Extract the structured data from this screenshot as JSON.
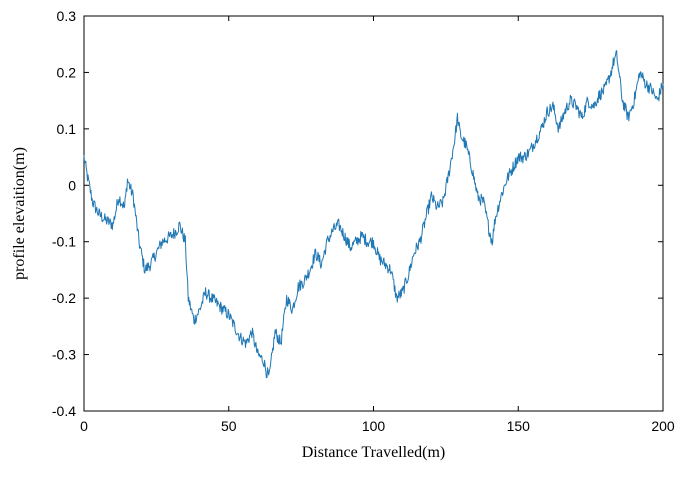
{
  "chart_data": {
    "type": "line",
    "title": "",
    "xlabel": "Distance Travelled(m)",
    "ylabel": "profile elevaition(m)",
    "xlim": [
      0,
      200
    ],
    "ylim": [
      -0.4,
      0.3
    ],
    "x_ticks": [
      0,
      50,
      100,
      150,
      200
    ],
    "x_tick_labels": [
      "0",
      "50",
      "100",
      "150",
      "200"
    ],
    "y_ticks": [
      -0.4,
      -0.3,
      -0.2,
      -0.1,
      0,
      0.1,
      0.2,
      0.3
    ],
    "y_tick_labels": [
      "-0.4",
      "-0.3",
      "-0.2",
      "-0.1",
      "0",
      "0.1",
      "0.2",
      "0.3"
    ],
    "grid": false,
    "legend": "none",
    "series": [
      {
        "color": "#1f77b4",
        "x": [
          0,
          1,
          3,
          5,
          7,
          10,
          12,
          14,
          15,
          17,
          19,
          21,
          23,
          25,
          27,
          30,
          32,
          33,
          35,
          36,
          38,
          40,
          42,
          44,
          46,
          48,
          50,
          52,
          54,
          56,
          58,
          60,
          62,
          63,
          64,
          65,
          66,
          68,
          70,
          72,
          74,
          76,
          78,
          80,
          82,
          84,
          86,
          88,
          90,
          92,
          94,
          96,
          98,
          100,
          102,
          104,
          106,
          108,
          110,
          112,
          114,
          116,
          118,
          120,
          122,
          124,
          126,
          128,
          129,
          130,
          132,
          134,
          136,
          138,
          140,
          141,
          142,
          144,
          146,
          148,
          150,
          152,
          154,
          156,
          158,
          160,
          162,
          164,
          166,
          168,
          170,
          172,
          174,
          176,
          178,
          180,
          182,
          183,
          184,
          186,
          188,
          190,
          192,
          194,
          196,
          198,
          200
        ],
        "y": [
          0.05,
          0.02,
          -0.03,
          -0.05,
          -0.06,
          -0.07,
          -0.02,
          -0.04,
          0.01,
          -0.02,
          -0.1,
          -0.15,
          -0.14,
          -0.12,
          -0.1,
          -0.09,
          -0.08,
          -0.07,
          -0.1,
          -0.2,
          -0.24,
          -0.22,
          -0.19,
          -0.2,
          -0.21,
          -0.22,
          -0.23,
          -0.25,
          -0.27,
          -0.28,
          -0.26,
          -0.3,
          -0.31,
          -0.33,
          -0.34,
          -0.3,
          -0.26,
          -0.28,
          -0.2,
          -0.22,
          -0.18,
          -0.17,
          -0.15,
          -0.12,
          -0.14,
          -0.1,
          -0.08,
          -0.07,
          -0.09,
          -0.11,
          -0.1,
          -0.09,
          -0.1,
          -0.1,
          -0.13,
          -0.14,
          -0.15,
          -0.2,
          -0.19,
          -0.16,
          -0.12,
          -0.1,
          -0.06,
          -0.02,
          -0.04,
          -0.03,
          0.02,
          0.08,
          0.12,
          0.09,
          0.07,
          0.03,
          -0.02,
          -0.03,
          -0.08,
          -0.1,
          -0.06,
          -0.02,
          0.01,
          0.03,
          0.05,
          0.05,
          0.06,
          0.08,
          0.1,
          0.13,
          0.14,
          0.1,
          0.13,
          0.15,
          0.14,
          0.12,
          0.15,
          0.14,
          0.16,
          0.17,
          0.2,
          0.22,
          0.23,
          0.15,
          0.12,
          0.15,
          0.2,
          0.18,
          0.17,
          0.15,
          0.18
        ]
      }
    ]
  }
}
